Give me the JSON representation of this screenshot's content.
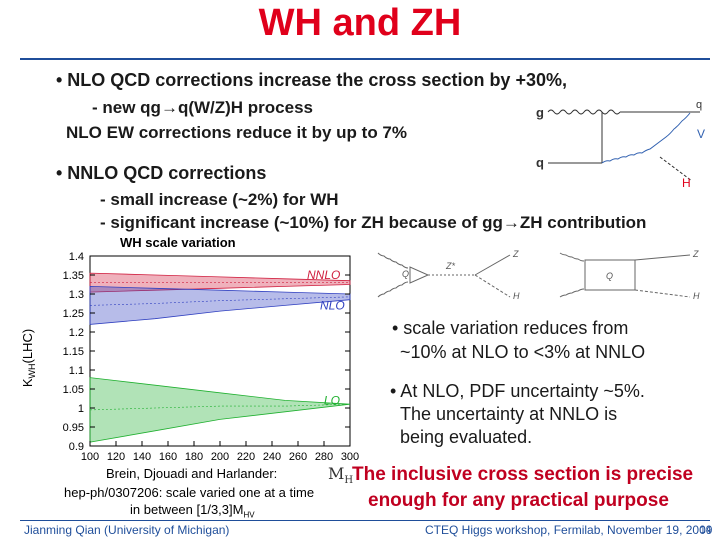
{
  "slide": {
    "title": "WH and ZH",
    "bullet1": "• NLO QCD corrections increase the cross section by +30%,",
    "sub1a": "- new qg→q(W/Z)H process",
    "sub1b": "NLO EW corrections reduce it by up to 7%",
    "bullet2": "• NNLO QCD corrections",
    "sub2a": "- small increase (~2%) for WH",
    "sub2b": "- significant increase (~10%) for ZH because of gg→ZH contribution",
    "bullet3a": "• scale variation reduces from",
    "bullet3b": "~10% at NLO to <3% at NNLO",
    "bullet4a": "• At NLO, PDF uncertainty ~5%.",
    "bullet4b": "The uncertainty at NNLO is",
    "bullet4c": "being evaluated.",
    "conclusion1": "The inclusive cross section is precise",
    "conclusion2": "enough for any practical purpose",
    "reference1": "Brein, Djouadi and Harlander:",
    "reference2": "hep-ph/0307206: scale varied one at a time",
    "reference3": "in between [1/3,3]M",
    "reference3_sub": "HV",
    "footer_left": "Jianming Qian (University of Michigan)",
    "footer_right": "CTEQ Higgs workshop, Fermilab, November 19, 2009",
    "page_number": "14"
  },
  "diagram_top": {
    "label_g": "g",
    "label_q_in": "q",
    "label_q_out": "q",
    "label_V": "V",
    "label_H": "H"
  },
  "diagram_zh": {
    "left_Z": "Z",
    "left_Zstar": "Z*",
    "left_H": "H",
    "left_Q": "Q",
    "right_Z": "Z",
    "right_Q": "Q",
    "right_H": "H"
  },
  "colors": {
    "title": "#e0001b",
    "nnlo": "#d02040",
    "nlo": "#3040c0",
    "lo": "#20b030",
    "accent_blue": "#1f4e9a",
    "H_label": "#e0001b"
  },
  "chart_data": {
    "type": "area",
    "title": "WH scale variation",
    "xlabel": "M",
    "xlabel_sub": "H",
    "ylabel": "K",
    "ylabel_sub": "WH",
    "ylabel_suffix": "(LHC)",
    "xlim": [
      100,
      300
    ],
    "ylim": [
      0.9,
      1.4
    ],
    "x_ticks": [
      "100",
      "120",
      "140",
      "160",
      "180",
      "200",
      "220",
      "240",
      "260",
      "280",
      "300"
    ],
    "y_ticks": [
      "0.9",
      "0.95",
      "1",
      "1.05",
      "1.1",
      "1.15",
      "1.2",
      "1.25",
      "1.3",
      "1.35",
      "1.4"
    ],
    "series": [
      {
        "name": "NNLO",
        "x": [
          100,
          150,
          200,
          250,
          300
        ],
        "low": [
          1.305,
          1.31,
          1.315,
          1.32,
          1.325
        ],
        "high": [
          1.355,
          1.35,
          1.345,
          1.34,
          1.335
        ]
      },
      {
        "name": "NLO",
        "x": [
          100,
          150,
          200,
          250,
          300
        ],
        "low": [
          1.22,
          1.235,
          1.255,
          1.27,
          1.285
        ],
        "high": [
          1.32,
          1.315,
          1.31,
          1.305,
          1.3
        ]
      },
      {
        "name": "LO",
        "x": [
          100,
          150,
          200,
          250,
          300
        ],
        "low": [
          0.91,
          0.94,
          0.97,
          0.99,
          1.01
        ],
        "high": [
          1.08,
          1.06,
          1.04,
          1.02,
          1.01
        ]
      }
    ]
  }
}
